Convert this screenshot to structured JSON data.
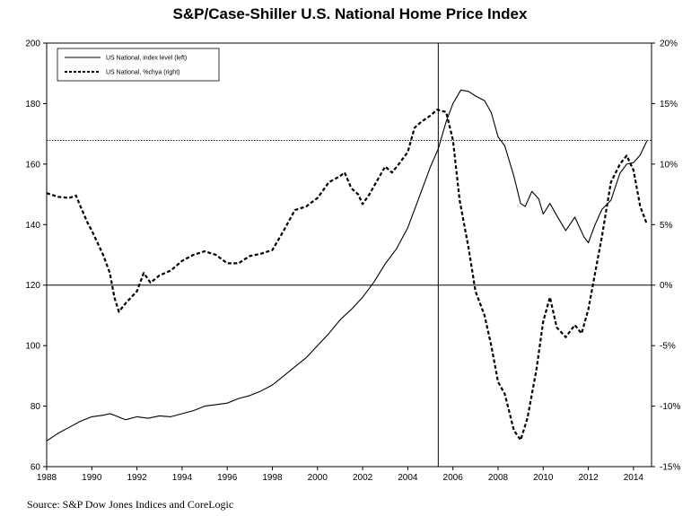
{
  "title": "S&P/Case-Shiller U.S. National Home Price Index",
  "source": "Source: S&P Dow Jones Indices and CoreLogic",
  "chart_data": {
    "type": "line",
    "title": "S&P/Case-Shiller U.S. National Home Price Index",
    "x_ticks": [
      "1988",
      "1990",
      "1992",
      "1994",
      "1996",
      "1998",
      "2000",
      "2002",
      "2004",
      "2006",
      "2008",
      "2010",
      "2012",
      "2014"
    ],
    "xlim": [
      1988,
      2014.8
    ],
    "left_axis": {
      "ylim": [
        60,
        200
      ],
      "ticks": [
        "60",
        "80",
        "100",
        "120",
        "140",
        "160",
        "180",
        "200"
      ]
    },
    "right_axis": {
      "ylim": [
        -15,
        20
      ],
      "ticks": [
        "-15%",
        "-10%",
        "-5%",
        "0%",
        "5%",
        "10%",
        "15%",
        "20%"
      ]
    },
    "legend": {
      "placement": "top-left",
      "entries": [
        "US National, index level (left)",
        "US National, %chya (right)"
      ]
    },
    "reference_lines": {
      "horizontal_index_level": 167.8,
      "vertical_year": 2005.35,
      "zero_percent_line": true
    },
    "series": [
      {
        "name": "US National, index level (left)",
        "axis": "left",
        "style": "solid",
        "color": "#000000",
        "points": [
          [
            1988.0,
            68.5
          ],
          [
            1988.5,
            71
          ],
          [
            1989.0,
            73
          ],
          [
            1989.5,
            75
          ],
          [
            1990.0,
            76.5
          ],
          [
            1990.5,
            77
          ],
          [
            1990.8,
            77.5
          ],
          [
            1991.0,
            77
          ],
          [
            1991.5,
            75.5
          ],
          [
            1992.0,
            76.5
          ],
          [
            1992.5,
            76
          ],
          [
            1993.0,
            76.8
          ],
          [
            1993.5,
            76.5
          ],
          [
            1994.0,
            77.5
          ],
          [
            1994.5,
            78.5
          ],
          [
            1995.0,
            80
          ],
          [
            1995.5,
            80.5
          ],
          [
            1996.0,
            81
          ],
          [
            1996.5,
            82.5
          ],
          [
            1997.0,
            83.5
          ],
          [
            1997.5,
            85
          ],
          [
            1998.0,
            87
          ],
          [
            1998.5,
            90
          ],
          [
            1999.0,
            93
          ],
          [
            1999.5,
            96
          ],
          [
            2000.0,
            100
          ],
          [
            2000.5,
            104
          ],
          [
            2001.0,
            108.5
          ],
          [
            2001.5,
            112
          ],
          [
            2002.0,
            116
          ],
          [
            2002.5,
            121
          ],
          [
            2003.0,
            127
          ],
          [
            2003.5,
            132
          ],
          [
            2004.0,
            139
          ],
          [
            2004.5,
            149
          ],
          [
            2005.0,
            159
          ],
          [
            2005.35,
            165
          ],
          [
            2005.7,
            174
          ],
          [
            2006.0,
            180
          ],
          [
            2006.35,
            184.5
          ],
          [
            2006.7,
            184
          ],
          [
            2007.0,
            182.5
          ],
          [
            2007.4,
            181
          ],
          [
            2007.7,
            177
          ],
          [
            2008.0,
            169
          ],
          [
            2008.3,
            166
          ],
          [
            2008.7,
            156
          ],
          [
            2009.0,
            147
          ],
          [
            2009.2,
            146
          ],
          [
            2009.5,
            151
          ],
          [
            2009.8,
            148.5
          ],
          [
            2010.0,
            143.5
          ],
          [
            2010.3,
            147
          ],
          [
            2010.6,
            143
          ],
          [
            2011.0,
            138
          ],
          [
            2011.4,
            142.5
          ],
          [
            2011.8,
            136
          ],
          [
            2012.0,
            134
          ],
          [
            2012.3,
            140
          ],
          [
            2012.6,
            145
          ],
          [
            2013.0,
            148
          ],
          [
            2013.4,
            157
          ],
          [
            2013.7,
            160
          ],
          [
            2014.0,
            160.5
          ],
          [
            2014.3,
            163
          ],
          [
            2014.6,
            167.8
          ]
        ]
      },
      {
        "name": "US National, %chya (right)",
        "axis": "right",
        "style": "dashed",
        "color": "#000000",
        "points": [
          [
            1988.0,
            7.6
          ],
          [
            1988.5,
            7.3
          ],
          [
            1989.0,
            7.2
          ],
          [
            1989.3,
            7.4
          ],
          [
            1989.5,
            6.5
          ],
          [
            1989.8,
            5.2
          ],
          [
            1990.0,
            4.5
          ],
          [
            1990.5,
            2.5
          ],
          [
            1990.8,
            1.0
          ],
          [
            1991.0,
            -1.0
          ],
          [
            1991.2,
            -2.2
          ],
          [
            1991.5,
            -1.5
          ],
          [
            1992.0,
            -0.5
          ],
          [
            1992.3,
            1.0
          ],
          [
            1992.6,
            0.2
          ],
          [
            1993.0,
            0.8
          ],
          [
            1993.5,
            1.2
          ],
          [
            1994.0,
            2.0
          ],
          [
            1994.5,
            2.5
          ],
          [
            1995.0,
            2.8
          ],
          [
            1995.5,
            2.5
          ],
          [
            1996.0,
            1.8
          ],
          [
            1996.5,
            1.8
          ],
          [
            1997.0,
            2.4
          ],
          [
            1997.5,
            2.6
          ],
          [
            1998.0,
            2.9
          ],
          [
            1998.5,
            4.5
          ],
          [
            1999.0,
            6.2
          ],
          [
            1999.5,
            6.5
          ],
          [
            2000.0,
            7.2
          ],
          [
            2000.5,
            8.5
          ],
          [
            2001.0,
            9.0
          ],
          [
            2001.2,
            9.3
          ],
          [
            2001.5,
            8.0
          ],
          [
            2001.8,
            7.5
          ],
          [
            2002.0,
            6.7
          ],
          [
            2002.3,
            7.5
          ],
          [
            2002.6,
            8.5
          ],
          [
            2003.0,
            9.8
          ],
          [
            2003.3,
            9.3
          ],
          [
            2003.6,
            10.0
          ],
          [
            2004.0,
            11.0
          ],
          [
            2004.3,
            13.0
          ],
          [
            2004.6,
            13.5
          ],
          [
            2005.0,
            14.0
          ],
          [
            2005.3,
            14.5
          ],
          [
            2005.7,
            14.3
          ],
          [
            2006.0,
            12.0
          ],
          [
            2006.3,
            7.0
          ],
          [
            2006.7,
            3.0
          ],
          [
            2007.0,
            -0.5
          ],
          [
            2007.4,
            -2.5
          ],
          [
            2007.7,
            -5.0
          ],
          [
            2008.0,
            -8.0
          ],
          [
            2008.3,
            -9.0
          ],
          [
            2008.7,
            -12.0
          ],
          [
            2009.0,
            -12.8
          ],
          [
            2009.3,
            -11.0
          ],
          [
            2009.7,
            -7.0
          ],
          [
            2010.0,
            -3.0
          ],
          [
            2010.3,
            -1.0
          ],
          [
            2010.6,
            -3.5
          ],
          [
            2011.0,
            -4.3
          ],
          [
            2011.4,
            -3.3
          ],
          [
            2011.7,
            -4.0
          ],
          [
            2012.0,
            -2.0
          ],
          [
            2012.3,
            1.0
          ],
          [
            2012.6,
            4.0
          ],
          [
            2013.0,
            8.5
          ],
          [
            2013.4,
            10.0
          ],
          [
            2013.7,
            10.7
          ],
          [
            2014.0,
            9.5
          ],
          [
            2014.3,
            6.5
          ],
          [
            2014.6,
            5.0
          ]
        ]
      }
    ]
  }
}
